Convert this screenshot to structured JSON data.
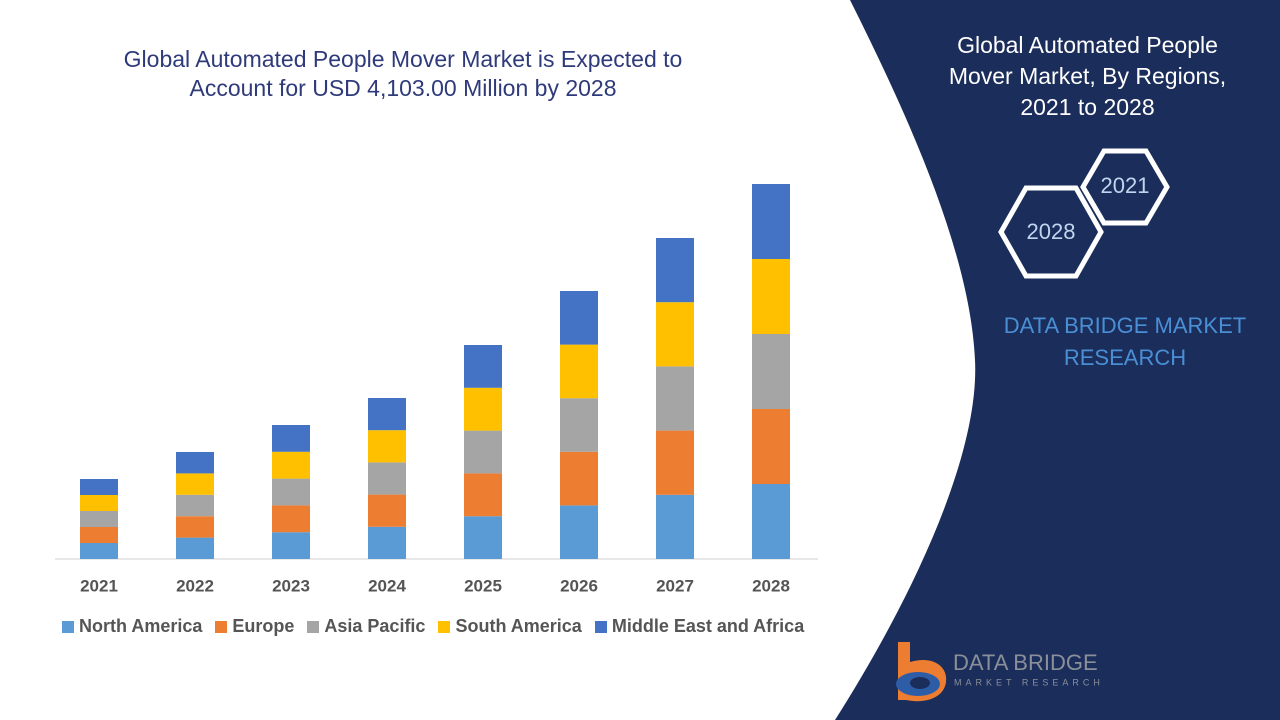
{
  "chart_data": {
    "type": "bar",
    "stacked": true,
    "title": "Global Automated People Mover Market is Expected to Account for USD 4,103.00 Million by 2028",
    "categories": [
      "2021",
      "2022",
      "2023",
      "2024",
      "2025",
      "2026",
      "2027",
      "2028"
    ],
    "series": [
      {
        "name": "North America",
        "color": "#5b9bd5",
        "values": [
          16,
          21.4,
          26.8,
          32.2,
          42.8,
          53.6,
          64.2,
          75
        ]
      },
      {
        "name": "Europe",
        "color": "#ed7d31",
        "values": [
          16,
          21.4,
          26.8,
          32.2,
          42.8,
          53.6,
          64.2,
          75
        ]
      },
      {
        "name": "Asia Pacific",
        "color": "#a5a5a5",
        "values": [
          16,
          21.4,
          26.8,
          32.2,
          42.8,
          53.6,
          64.2,
          75
        ]
      },
      {
        "name": "South America",
        "color": "#ffc000",
        "values": [
          16,
          21.4,
          26.8,
          32.2,
          42.8,
          53.6,
          64.2,
          75
        ]
      },
      {
        "name": "Middle East and Africa",
        "color": "#4472c4",
        "values": [
          16,
          21.4,
          26.8,
          32.2,
          42.8,
          53.6,
          64.2,
          75
        ]
      }
    ],
    "ylim": [
      0,
      375
    ],
    "legend": "bottom"
  },
  "panel": {
    "title": "Global Automated People Mover Market, By Regions, 2021 to 2028",
    "hexagons": [
      "2021",
      "2028"
    ],
    "brand": "DATA BRIDGE MARKET RESEARCH"
  },
  "logo": {
    "name": "DATA BRIDGE",
    "tagline": "MARKET RESEARCH"
  }
}
